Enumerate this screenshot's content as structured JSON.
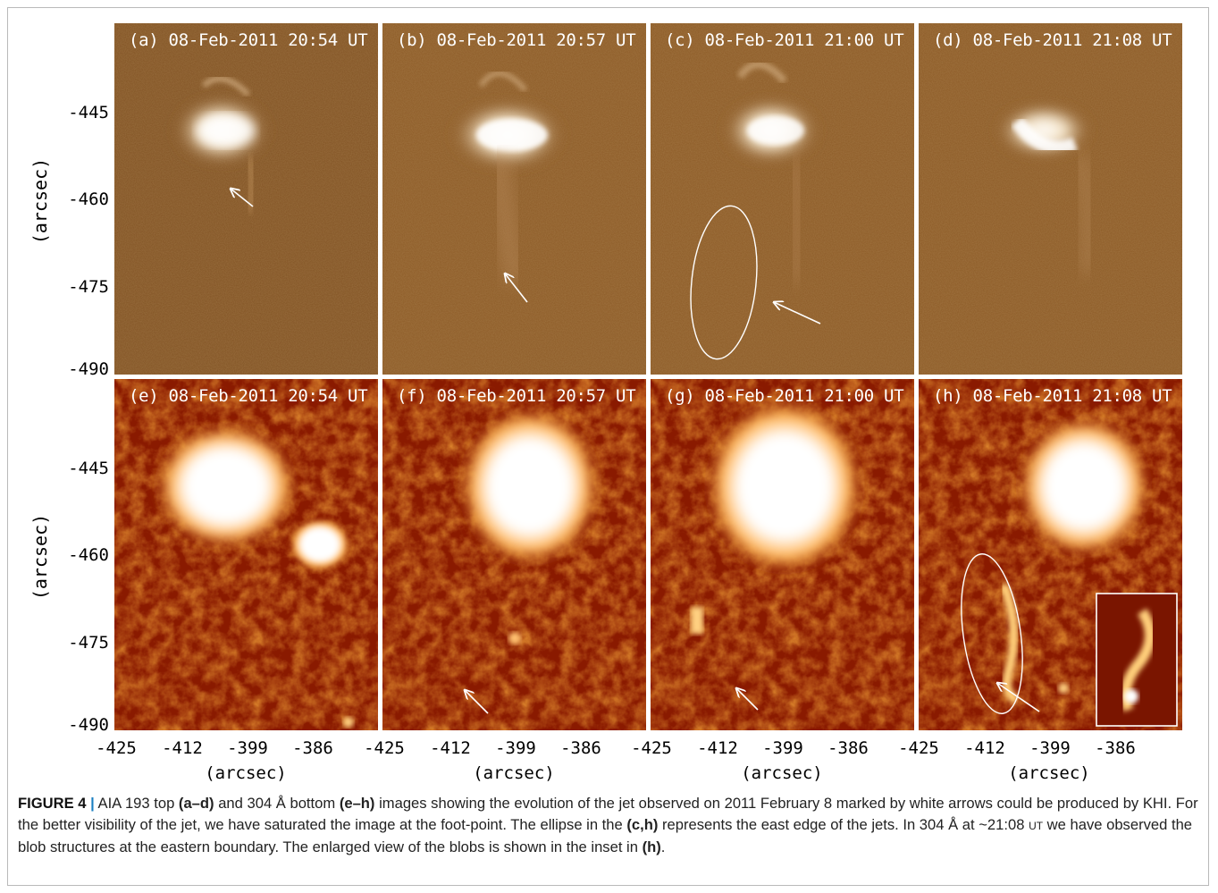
{
  "panels": {
    "a": {
      "title": "(a) 08-Feb-2011 20:54 UT"
    },
    "b": {
      "title": "(b) 08-Feb-2011 20:57 UT"
    },
    "c": {
      "title": "(c) 08-Feb-2011 21:00 UT"
    },
    "d": {
      "title": "(d) 08-Feb-2011 21:08 UT"
    },
    "e": {
      "title": "(e) 08-Feb-2011 20:54 UT"
    },
    "f": {
      "title": "(f) 08-Feb-2011 20:57 UT"
    },
    "g": {
      "title": "(g) 08-Feb-2011 21:00 UT"
    },
    "h": {
      "title": "(h) 08-Feb-2011 21:08 UT"
    }
  },
  "axes": {
    "y_label": "(arcsec)",
    "x_label": "(arcsec)",
    "y_ticks": [
      "-445",
      "-460",
      "-475",
      "-490"
    ],
    "x_ticks": [
      "-425",
      "-412",
      "-399",
      "-386"
    ]
  },
  "colors": {
    "aia193_base": "#8c5a26",
    "aia304_base": "#8a1a00",
    "annotation": "#ffffff"
  },
  "caption": {
    "figure_label": "FIGURE 4",
    "separator": "|",
    "t1": " AIA 193 top ",
    "b1": "(a–d)",
    "t2": " and 304 Å bottom ",
    "b2": "(e–h)",
    "t3": " images showing the evolution of the jet observed on 2011 February 8 marked by white arrows could be produced by KHI. For the better visibility of the jet, we have saturated the image at the foot-point. The ellipse in the ",
    "b3": "(c,h)",
    "t4": " represents the east edge of the jets. In 304 Å at ~21:08 ",
    "ut": "UT",
    "t5": " we have observed the blob structures at the eastern boundary. The enlarged view of the blobs is shown in the inset in ",
    "b4": "(h)",
    "t6": "."
  }
}
